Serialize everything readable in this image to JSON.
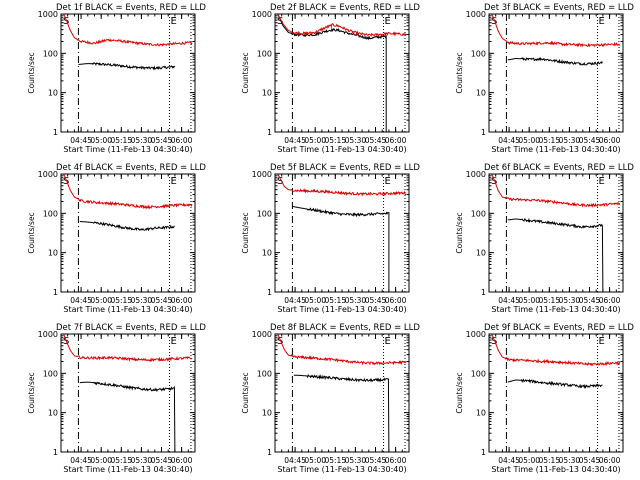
{
  "chart_data": [
    {
      "type": "line",
      "title": "Det 1f BLACK = Events, RED = LLD",
      "xlabel": "Start Time (11-Feb-13 04:30:40)",
      "ylabel": "Counts/sec",
      "yscale": "log",
      "ylim": [
        1,
        1000
      ],
      "xlim": [
        "04:30",
        "06:10"
      ],
      "xticks": [
        "04:45",
        "05:00",
        "05:15",
        "05:30",
        "05:45",
        "06:00"
      ],
      "yticks": [
        "1",
        "10",
        "100",
        "1000"
      ],
      "markers": [
        {
          "label": "S",
          "time": "04:43"
        },
        {
          "label": "E",
          "time": "05:51"
        }
      ],
      "dropout": false,
      "series": [
        {
          "name": "BLACK = Events",
          "color": "#000000",
          "start": "04:43",
          "end": "05:55",
          "x": [
            "04:43",
            "04:50",
            "05:00",
            "05:10",
            "05:20",
            "05:30",
            "05:40",
            "05:50",
            "05:55"
          ],
          "y": [
            52,
            55,
            53,
            50,
            46,
            43,
            42,
            44,
            46
          ]
        },
        {
          "name": "RED = LLD",
          "color": "#e00000",
          "start": "04:32",
          "end": "06:08",
          "x": [
            "04:32",
            "04:34",
            "04:37",
            "04:40",
            "04:45",
            "04:55",
            "05:05",
            "05:15",
            "05:25",
            "05:35",
            "05:45",
            "05:55",
            "06:05",
            "06:08"
          ],
          "y": [
            1000,
            700,
            380,
            250,
            200,
            180,
            220,
            205,
            185,
            170,
            165,
            175,
            185,
            180
          ]
        }
      ]
    },
    {
      "type": "line",
      "title": "Det 2f BLACK = Events, RED = LLD",
      "xlabel": "Start Time (11-Feb-13 04:30:40)",
      "ylabel": "Counts/sec",
      "yscale": "log",
      "ylim": [
        1,
        1000
      ],
      "xlim": [
        "04:30",
        "06:10"
      ],
      "xticks": [
        "04:45",
        "05:00",
        "05:15",
        "05:30",
        "05:45",
        "06:00"
      ],
      "yticks": [
        "1",
        "10",
        "100",
        "1000"
      ],
      "markers": [
        {
          "label": "S",
          "time": "04:43"
        },
        {
          "label": "E",
          "time": "05:51"
        }
      ],
      "dropout": true,
      "dropout_time": "05:53",
      "series": [
        {
          "name": "BLACK = Events",
          "color": "#000000",
          "start": "04:32",
          "end": "05:53",
          "x": [
            "04:32",
            "04:36",
            "04:40",
            "04:45",
            "04:52",
            "05:00",
            "05:07",
            "05:13",
            "05:18",
            "05:25",
            "05:32",
            "05:40",
            "05:47",
            "05:53"
          ],
          "y": [
            1000,
            500,
            340,
            300,
            290,
            300,
            360,
            400,
            380,
            320,
            280,
            240,
            260,
            270
          ]
        },
        {
          "name": "RED = LLD",
          "color": "#e00000",
          "start": "04:32",
          "end": "06:08",
          "x": [
            "04:32",
            "04:36",
            "04:40",
            "04:45",
            "04:52",
            "05:00",
            "05:07",
            "05:13",
            "05:18",
            "05:25",
            "05:32",
            "05:40",
            "05:47",
            "05:55",
            "06:02",
            "06:08"
          ],
          "y": [
            1000,
            560,
            380,
            330,
            320,
            340,
            440,
            530,
            490,
            380,
            320,
            290,
            300,
            320,
            310,
            300
          ]
        }
      ]
    },
    {
      "type": "line",
      "title": "Det 3f BLACK = Events, RED = LLD",
      "xlabel": "Start Time (11-Feb-13 04:30:40)",
      "ylabel": "Counts/sec",
      "yscale": "log",
      "ylim": [
        1,
        1000
      ],
      "xlim": [
        "04:30",
        "06:10"
      ],
      "xticks": [
        "04:45",
        "05:00",
        "05:15",
        "05:30",
        "05:45",
        "06:00"
      ],
      "yticks": [
        "1",
        "10",
        "100",
        "1000"
      ],
      "markers": [
        {
          "label": "S",
          "time": "04:43"
        },
        {
          "label": "E",
          "time": "05:51"
        }
      ],
      "dropout": false,
      "series": [
        {
          "name": "BLACK = Events",
          "color": "#000000",
          "start": "04:44",
          "end": "05:55",
          "x": [
            "04:44",
            "04:50",
            "05:00",
            "05:10",
            "05:20",
            "05:30",
            "05:40",
            "05:50",
            "05:55"
          ],
          "y": [
            68,
            74,
            70,
            72,
            64,
            58,
            54,
            56,
            58
          ]
        },
        {
          "name": "RED = LLD",
          "color": "#e00000",
          "start": "04:32",
          "end": "06:08",
          "x": [
            "04:32",
            "04:34",
            "04:37",
            "04:40",
            "04:45",
            "04:55",
            "05:05",
            "05:15",
            "05:25",
            "05:35",
            "05:45",
            "05:55",
            "06:05",
            "06:08"
          ],
          "y": [
            1000,
            700,
            360,
            240,
            185,
            175,
            180,
            185,
            170,
            165,
            160,
            165,
            170,
            160
          ]
        }
      ]
    },
    {
      "type": "line",
      "title": "Det 4f BLACK = Events, RED = LLD",
      "xlabel": "Start Time (11-Feb-13 04:30:40)",
      "ylabel": "Counts/sec",
      "yscale": "log",
      "ylim": [
        1,
        1000
      ],
      "xlim": [
        "04:30",
        "06:10"
      ],
      "xticks": [
        "04:45",
        "05:00",
        "05:15",
        "05:30",
        "05:45",
        "06:00"
      ],
      "yticks": [
        "1",
        "10",
        "100",
        "1000"
      ],
      "markers": [
        {
          "label": "S",
          "time": "04:43"
        },
        {
          "label": "E",
          "time": "05:51"
        }
      ],
      "dropout": false,
      "series": [
        {
          "name": "BLACK = Events",
          "color": "#000000",
          "start": "04:44",
          "end": "05:55",
          "x": [
            "04:44",
            "04:50",
            "05:00",
            "05:10",
            "05:20",
            "05:30",
            "05:40",
            "05:50",
            "05:55"
          ],
          "y": [
            62,
            60,
            55,
            48,
            42,
            38,
            42,
            44,
            46
          ]
        },
        {
          "name": "RED = LLD",
          "color": "#e00000",
          "start": "04:32",
          "end": "06:08",
          "x": [
            "04:32",
            "04:34",
            "04:37",
            "04:40",
            "04:45",
            "04:55",
            "05:05",
            "05:15",
            "05:25",
            "05:35",
            "05:45",
            "05:55",
            "06:05",
            "06:08"
          ],
          "y": [
            1000,
            700,
            380,
            260,
            210,
            190,
            180,
            170,
            155,
            145,
            150,
            160,
            165,
            165
          ]
        }
      ]
    },
    {
      "type": "line",
      "title": "Det 5f BLACK = Events, RED = LLD",
      "xlabel": "Start Time (11-Feb-13 04:30:40)",
      "ylabel": "Counts/sec",
      "yscale": "log",
      "ylim": [
        1,
        1000
      ],
      "xlim": [
        "04:30",
        "06:10"
      ],
      "xticks": [
        "04:45",
        "05:00",
        "05:15",
        "05:30",
        "05:45",
        "06:00"
      ],
      "yticks": [
        "1",
        "10",
        "100",
        "1000"
      ],
      "markers": [
        {
          "label": "S",
          "time": "04:43"
        },
        {
          "label": "E",
          "time": "05:51"
        }
      ],
      "dropout": true,
      "dropout_time": "05:55",
      "series": [
        {
          "name": "BLACK = Events",
          "color": "#000000",
          "start": "04:43",
          "end": "05:55",
          "x": [
            "04:43",
            "04:50",
            "05:00",
            "05:10",
            "05:20",
            "05:30",
            "05:40",
            "05:50",
            "05:55"
          ],
          "y": [
            150,
            135,
            120,
            105,
            95,
            92,
            94,
            98,
            100
          ]
        },
        {
          "name": "RED = LLD",
          "color": "#e00000",
          "start": "04:32",
          "end": "06:08",
          "x": [
            "04:32",
            "04:34",
            "04:37",
            "04:40",
            "04:45",
            "04:55",
            "05:05",
            "05:15",
            "05:25",
            "05:35",
            "05:45",
            "05:55",
            "06:05",
            "06:08"
          ],
          "y": [
            1000,
            750,
            480,
            400,
            380,
            370,
            360,
            340,
            320,
            310,
            310,
            320,
            330,
            320
          ]
        }
      ]
    },
    {
      "type": "line",
      "title": "Det 6f BLACK = Events, RED = LLD",
      "xlabel": "Start Time (11-Feb-13 04:30:40)",
      "ylabel": "Counts/sec",
      "yscale": "log",
      "ylim": [
        1,
        1000
      ],
      "xlim": [
        "04:30",
        "06:10"
      ],
      "xticks": [
        "04:45",
        "05:00",
        "05:15",
        "05:30",
        "05:45",
        "06:00"
      ],
      "yticks": [
        "1",
        "10",
        "100",
        "1000"
      ],
      "markers": [
        {
          "label": "S",
          "time": "04:43"
        },
        {
          "label": "E",
          "time": "05:51"
        }
      ],
      "dropout": true,
      "dropout_time": "05:55",
      "series": [
        {
          "name": "BLACK = Events",
          "color": "#000000",
          "start": "04:44",
          "end": "05:55",
          "x": [
            "04:44",
            "04:50",
            "05:00",
            "05:10",
            "05:20",
            "05:30",
            "05:40",
            "05:50",
            "05:55"
          ],
          "y": [
            68,
            72,
            66,
            60,
            55,
            50,
            45,
            48,
            50
          ]
        },
        {
          "name": "RED = LLD",
          "color": "#e00000",
          "start": "04:32",
          "end": "06:08",
          "x": [
            "04:32",
            "04:34",
            "04:37",
            "04:40",
            "04:45",
            "04:55",
            "05:05",
            "05:15",
            "05:25",
            "05:35",
            "05:45",
            "05:55",
            "06:05",
            "06:08"
          ],
          "y": [
            1000,
            700,
            370,
            260,
            230,
            220,
            215,
            200,
            185,
            165,
            160,
            165,
            175,
            175
          ]
        }
      ]
    },
    {
      "type": "line",
      "title": "Det 7f BLACK = Events, RED = LLD",
      "xlabel": "Start Time (11-Feb-13 04:30:40)",
      "ylabel": "Counts/sec",
      "yscale": "log",
      "ylim": [
        1,
        1000
      ],
      "xlim": [
        "04:30",
        "06:10"
      ],
      "xticks": [
        "04:45",
        "05:00",
        "05:15",
        "05:30",
        "05:45",
        "06:00"
      ],
      "yticks": [
        "1",
        "10",
        "100",
        "1000"
      ],
      "markers": [
        {
          "label": "S",
          "time": "04:43"
        },
        {
          "label": "E",
          "time": "05:51"
        }
      ],
      "dropout": true,
      "dropout_time": "05:55",
      "series": [
        {
          "name": "BLACK = Events",
          "color": "#000000",
          "start": "04:44",
          "end": "05:55",
          "x": [
            "04:44",
            "04:50",
            "05:00",
            "05:10",
            "05:20",
            "05:30",
            "05:40",
            "05:50",
            "05:55"
          ],
          "y": [
            58,
            60,
            55,
            50,
            44,
            40,
            38,
            40,
            42
          ]
        },
        {
          "name": "RED = LLD",
          "color": "#e00000",
          "start": "04:32",
          "end": "06:08",
          "x": [
            "04:32",
            "04:34",
            "04:37",
            "04:40",
            "04:45",
            "04:55",
            "05:05",
            "05:15",
            "05:25",
            "05:35",
            "05:45",
            "05:55",
            "06:05",
            "06:08"
          ],
          "y": [
            1000,
            650,
            380,
            280,
            250,
            245,
            250,
            240,
            225,
            220,
            225,
            235,
            245,
            240
          ]
        }
      ]
    },
    {
      "type": "line",
      "title": "Det 8f BLACK = Events, RED = LLD",
      "xlabel": "Start Time (11-Feb-13 04:30:40)",
      "ylabel": "Counts/sec",
      "yscale": "log",
      "ylim": [
        1,
        1000
      ],
      "xlim": [
        "04:30",
        "06:10"
      ],
      "xticks": [
        "04:45",
        "05:00",
        "05:15",
        "05:30",
        "05:45",
        "06:00"
      ],
      "yticks": [
        "1",
        "10",
        "100",
        "1000"
      ],
      "markers": [
        {
          "label": "S",
          "time": "04:43"
        },
        {
          "label": "E",
          "time": "05:51"
        }
      ],
      "dropout": true,
      "dropout_time": "05:55",
      "series": [
        {
          "name": "BLACK = Events",
          "color": "#000000",
          "start": "04:44",
          "end": "05:55",
          "x": [
            "04:44",
            "04:50",
            "05:00",
            "05:10",
            "05:20",
            "05:30",
            "05:40",
            "05:50",
            "05:55"
          ],
          "y": [
            90,
            88,
            82,
            78,
            72,
            68,
            66,
            68,
            70
          ]
        },
        {
          "name": "RED = LLD",
          "color": "#e00000",
          "start": "04:32",
          "end": "06:08",
          "x": [
            "04:32",
            "04:34",
            "04:37",
            "04:40",
            "04:45",
            "04:55",
            "05:05",
            "05:15",
            "05:25",
            "05:35",
            "05:45",
            "05:55",
            "06:05",
            "06:08"
          ],
          "y": [
            1000,
            700,
            400,
            290,
            260,
            250,
            235,
            220,
            200,
            185,
            180,
            185,
            190,
            190
          ]
        }
      ]
    },
    {
      "type": "line",
      "title": "Det 9f BLACK = Events, RED = LLD",
      "xlabel": "Start Time (11-Feb-13 04:30:40)",
      "ylabel": "Counts/sec",
      "yscale": "log",
      "ylim": [
        1,
        1000
      ],
      "xlim": [
        "04:30",
        "06:10"
      ],
      "xticks": [
        "04:45",
        "05:00",
        "05:15",
        "05:30",
        "05:45",
        "06:00"
      ],
      "yticks": [
        "1",
        "10",
        "100",
        "1000"
      ],
      "markers": [
        {
          "label": "S",
          "time": "04:43"
        },
        {
          "label": "E",
          "time": "05:51"
        }
      ],
      "dropout": false,
      "series": [
        {
          "name": "BLACK = Events",
          "color": "#000000",
          "start": "04:44",
          "end": "05:55",
          "x": [
            "04:44",
            "04:50",
            "05:00",
            "05:10",
            "05:20",
            "05:30",
            "05:40",
            "05:50",
            "05:55"
          ],
          "y": [
            60,
            68,
            64,
            58,
            54,
            50,
            46,
            48,
            50
          ]
        },
        {
          "name": "RED = LLD",
          "color": "#e00000",
          "start": "04:32",
          "end": "06:08",
          "x": [
            "04:32",
            "04:34",
            "04:37",
            "04:40",
            "04:45",
            "04:55",
            "05:05",
            "05:15",
            "05:25",
            "05:35",
            "05:45",
            "05:55",
            "06:05",
            "06:08"
          ],
          "y": [
            1000,
            700,
            380,
            260,
            220,
            215,
            205,
            200,
            190,
            180,
            170,
            175,
            185,
            180
          ]
        }
      ]
    }
  ]
}
